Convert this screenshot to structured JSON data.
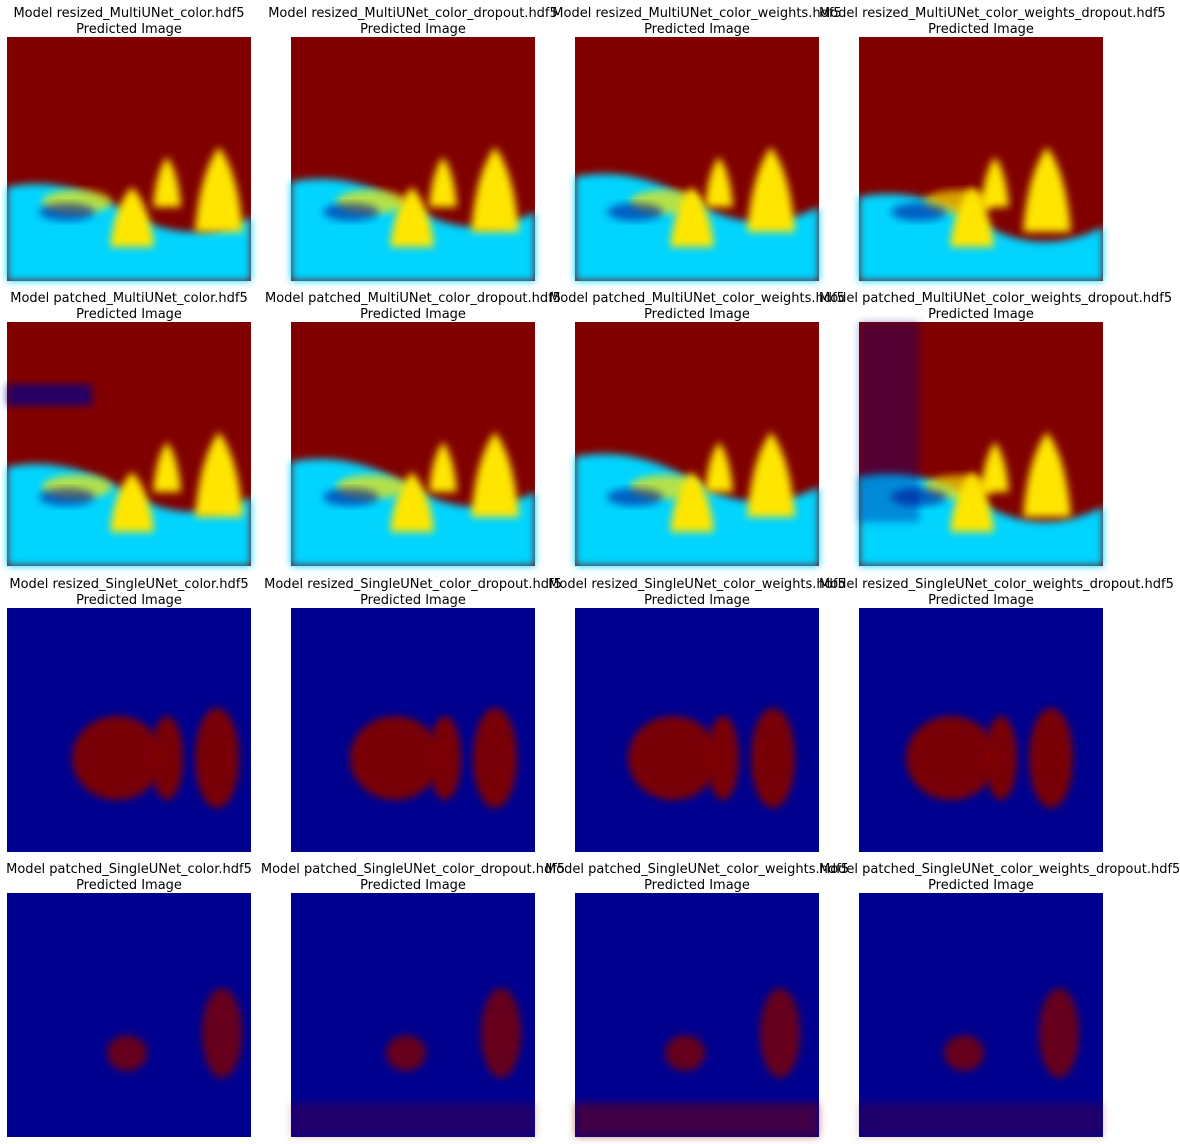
{
  "figure": {
    "subtitle": "Predicted Image",
    "colors": {
      "dark_red": "#800000",
      "cyan": "#00d4ff",
      "yellow": "#ffe600",
      "navy": "#00008f"
    },
    "rows": [
      {
        "scheme": "multi",
        "panels": [
          {
            "title": "Model resized_MultiUNet_color.hdf5"
          },
          {
            "title": "Model resized_MultiUNet_color_dropout.hdf5"
          },
          {
            "title": "Model resized_MultiUNet_color_weights.hdf5"
          },
          {
            "title": "Model resized_MultiUNet_color_weights_dropout.hdf5"
          }
        ]
      },
      {
        "scheme": "multi",
        "panels": [
          {
            "title": "Model patched_MultiUNet_color.hdf5"
          },
          {
            "title": "Model patched_MultiUNet_color_dropout.hdf5"
          },
          {
            "title": "Model patched_MultiUNet_color_weights.hdf5"
          },
          {
            "title": "Model patched_MultiUNet_color_weights_dropout.hdf5"
          }
        ]
      },
      {
        "scheme": "single",
        "panels": [
          {
            "title": "Model resized_SingleUNet_color.hdf5"
          },
          {
            "title": "Model resized_SingleUNet_color_dropout.hdf5"
          },
          {
            "title": "Model resized_SingleUNet_color_weights.hdf5"
          },
          {
            "title": "Model resized_SingleUNet_color_weights_dropout.hdf5"
          }
        ]
      },
      {
        "scheme": "single",
        "panels": [
          {
            "title": "Model patched_SingleUNet_color.hdf5"
          },
          {
            "title": "Model patched_SingleUNet_color_dropout.hdf5"
          },
          {
            "title": "Model patched_SingleUNet_color_weights.hdf5"
          },
          {
            "title": "Model patched_SingleUNet_color_weights_dropout.hdf5"
          }
        ]
      }
    ]
  }
}
